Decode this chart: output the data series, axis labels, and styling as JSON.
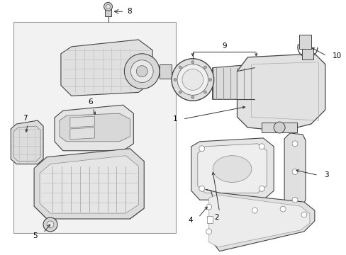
{
  "bg_color": "#ffffff",
  "box_fill": "#f0f0f0",
  "box_edge": "#999999",
  "part_fill": "#e8e8e8",
  "part_edge": "#444444",
  "grid_color": "#bbbbbb",
  "label_color": "#000000",
  "line_color": "#333333",
  "fig_width": 4.89,
  "fig_height": 3.6,
  "dpi": 100
}
